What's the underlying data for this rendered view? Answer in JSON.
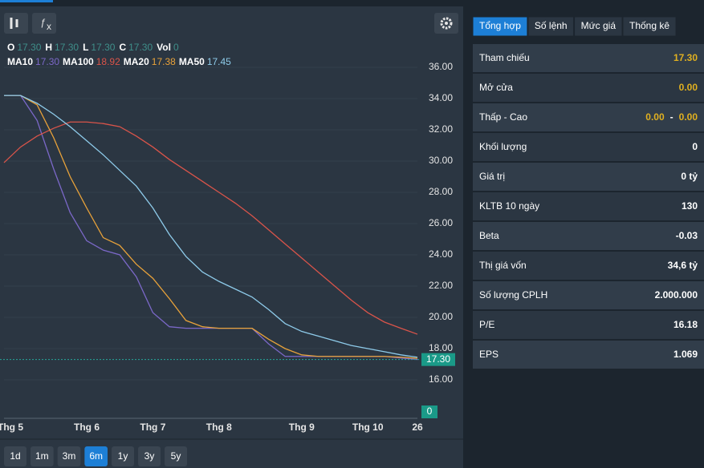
{
  "toolbar": {
    "range_buttons": [
      "1d",
      "1m",
      "3m",
      "6m",
      "1y",
      "3y",
      "5y"
    ],
    "active_range_index": 3
  },
  "ohlc": [
    {
      "label": "O",
      "value": "17.30"
    },
    {
      "label": "H",
      "value": "17.30"
    },
    {
      "label": "L",
      "value": "17.30"
    },
    {
      "label": "C",
      "value": "17.30"
    },
    {
      "label": "Vol",
      "value": "0"
    }
  ],
  "chart_data": {
    "type": "line",
    "categories": [
      "Thg 5",
      null,
      null,
      null,
      null,
      "Thg 6",
      null,
      null,
      null,
      "Thg 7",
      null,
      null,
      null,
      "Thg 8",
      null,
      null,
      null,
      null,
      "Thg 9",
      null,
      null,
      null,
      "Thg 10",
      null,
      null,
      "26"
    ],
    "series": [
      {
        "name": "MA10",
        "color": "#7b68c8",
        "last_label": "17.30",
        "values": [
          34.2,
          34.2,
          32.6,
          29.5,
          26.7,
          24.9,
          24.3,
          24.0,
          22.6,
          20.3,
          19.4,
          19.3,
          19.3,
          19.3,
          19.3,
          19.3,
          18.3,
          17.5,
          17.5,
          17.5,
          17.5,
          17.5,
          17.5,
          17.5,
          17.4,
          17.3
        ]
      },
      {
        "name": "MA100",
        "color": "#d9544a",
        "last_label": "18.92",
        "values": [
          29.9,
          30.9,
          31.6,
          32.1,
          32.5,
          32.5,
          32.4,
          32.2,
          31.6,
          30.9,
          30.1,
          29.4,
          28.7,
          28.0,
          27.3,
          26.5,
          25.6,
          24.7,
          23.8,
          22.9,
          22.0,
          21.1,
          20.3,
          19.7,
          19.3,
          18.92
        ]
      },
      {
        "name": "MA20",
        "color": "#e8a23a",
        "last_label": "17.38",
        "values": [
          34.2,
          34.2,
          33.6,
          31.5,
          29.0,
          27.0,
          25.1,
          24.6,
          23.4,
          22.5,
          21.2,
          19.8,
          19.4,
          19.3,
          19.3,
          19.3,
          18.6,
          18.0,
          17.6,
          17.5,
          17.5,
          17.5,
          17.5,
          17.5,
          17.45,
          17.38
        ]
      },
      {
        "name": "MA50",
        "color": "#8ecbea",
        "last_label": "17.45",
        "values": [
          34.2,
          34.2,
          33.7,
          33.0,
          32.2,
          31.3,
          30.4,
          29.4,
          28.4,
          27.0,
          25.3,
          23.9,
          22.9,
          22.3,
          21.8,
          21.3,
          20.5,
          19.6,
          19.1,
          18.8,
          18.5,
          18.2,
          18.0,
          17.8,
          17.6,
          17.45
        ]
      }
    ],
    "last_price": 17.3,
    "last_price_label": "17.30",
    "last_volume_label": "0",
    "ylim": [
      14,
      37
    ],
    "yticks": [
      {
        "value": 16,
        "label": "16.00"
      },
      {
        "value": 18,
        "label": "18.00"
      },
      {
        "value": 20,
        "label": "20.00"
      },
      {
        "value": 22,
        "label": "22.00"
      },
      {
        "value": 24,
        "label": "24.00"
      },
      {
        "value": 26,
        "label": "26.00"
      },
      {
        "value": 28,
        "label": "28.00"
      },
      {
        "value": 30,
        "label": "30.00"
      },
      {
        "value": 32,
        "label": "32.00"
      },
      {
        "value": 34,
        "label": "34.00"
      },
      {
        "value": 36,
        "label": "36.00"
      }
    ],
    "grid": true
  },
  "tabs": [
    "Tổng hợp",
    "Số lệnh",
    "Mức giá",
    "Thống kê"
  ],
  "active_tab_index": 0,
  "table": {
    "rows": [
      [
        "Tham chiếu",
        "17.30"
      ],
      [
        "Mở cửa",
        "0.00"
      ],
      [
        "Thấp - Cao",
        "0.00",
        "-",
        "0.00"
      ],
      [
        "Khối lượng",
        "0"
      ],
      [
        "Giá trị",
        "0 tỷ"
      ],
      [
        "KLTB 10 ngày",
        "130"
      ],
      [
        "Beta",
        "-0.03"
      ],
      [
        "Thị giá vốn",
        "34,6 tỷ"
      ],
      [
        "Số lượng CPLH",
        "2.000.000"
      ],
      [
        "P/E",
        "16.18"
      ],
      [
        "EPS",
        "1.069"
      ]
    ],
    "highlight_rows": [
      0,
      1,
      2
    ]
  }
}
